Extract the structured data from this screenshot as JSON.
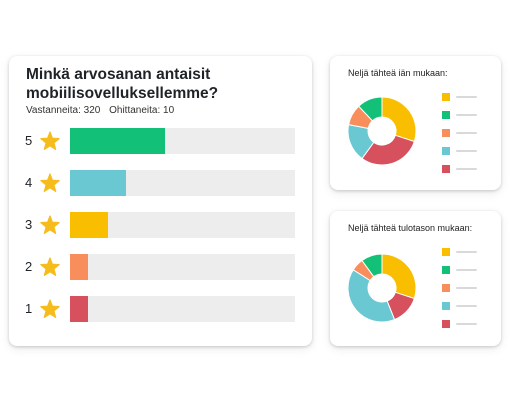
{
  "colors": {
    "green": "#12c177",
    "cyan": "#6ac8d2",
    "yellow": "#f9be00",
    "orange": "#f98e5d",
    "red": "#d6505d",
    "star": "#f5bc1c",
    "track": "#ededed"
  },
  "question": {
    "title": "Minkä arvosanan antaisit mobiilisovelluksellemme?",
    "answered": "Vastanneita: 320",
    "skipped": "Ohittaneita: 10"
  },
  "chart_data": [
    {
      "type": "bar",
      "orientation": "horizontal",
      "categories": [
        "5",
        "4",
        "3",
        "2",
        "1"
      ],
      "values": [
        42,
        25,
        17,
        8,
        8
      ],
      "xlim": [
        0,
        100
      ],
      "colors": [
        "#12c177",
        "#6ac8d2",
        "#f9be00",
        "#f98e5d",
        "#d6505d"
      ],
      "icon": "star-icon",
      "title": "Minkä arvosanan antaisit mobiilisovelluksellemme?"
    },
    {
      "type": "pie",
      "donut": true,
      "title": "Neljä tähteä iän mukaan:",
      "values": [
        30,
        30,
        18,
        10,
        12
      ],
      "colors": [
        "#f9be00",
        "#d6505d",
        "#6ac8d2",
        "#f98e5d",
        "#12c177"
      ],
      "legend_colors": [
        "#f9be00",
        "#12c177",
        "#f98e5d",
        "#6ac8d2",
        "#d6505d"
      ],
      "legend_placement": "right"
    },
    {
      "type": "pie",
      "donut": true,
      "title": "Neljä tähteä tulotason mukaan:",
      "values": [
        30,
        14,
        40,
        6,
        10
      ],
      "colors": [
        "#f9be00",
        "#d6505d",
        "#6ac8d2",
        "#f98e5d",
        "#12c177"
      ],
      "legend_colors": [
        "#f9be00",
        "#12c177",
        "#f98e5d",
        "#6ac8d2",
        "#d6505d"
      ],
      "legend_placement": "right"
    }
  ]
}
